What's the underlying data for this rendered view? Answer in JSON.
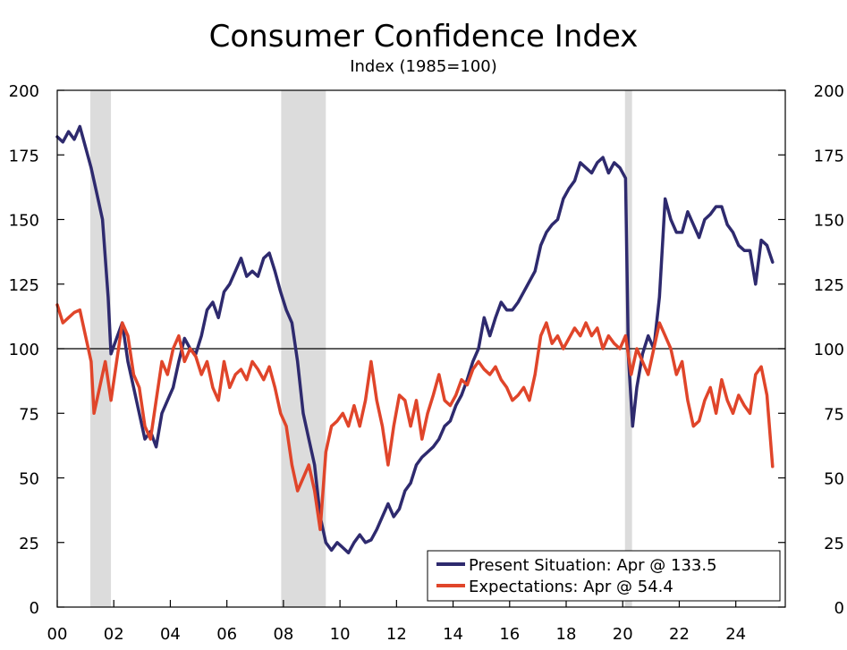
{
  "chart_data": {
    "type": "line",
    "title": "Consumer Confidence Index",
    "subtitle": "Index (1985=100)",
    "xlabel": "",
    "ylabel": "",
    "xlim": [
      2000,
      2025.75
    ],
    "ylim": [
      0,
      200
    ],
    "yticks": [
      0,
      25,
      50,
      75,
      100,
      125,
      150,
      175,
      200
    ],
    "xticks": [
      {
        "value": 2000,
        "label": "00"
      },
      {
        "value": 2002,
        "label": "02"
      },
      {
        "value": 2004,
        "label": "04"
      },
      {
        "value": 2006,
        "label": "06"
      },
      {
        "value": 2008,
        "label": "08"
      },
      {
        "value": 2010,
        "label": "10"
      },
      {
        "value": 2012,
        "label": "12"
      },
      {
        "value": 2014,
        "label": "14"
      },
      {
        "value": 2016,
        "label": "16"
      },
      {
        "value": 2018,
        "label": "18"
      },
      {
        "value": 2020,
        "label": "20"
      },
      {
        "value": 2022,
        "label": "22"
      },
      {
        "value": 2024,
        "label": "24"
      }
    ],
    "reference_line": 100,
    "recessions": [
      [
        2001.17,
        2001.9
      ],
      [
        2007.92,
        2009.5
      ],
      [
        2020.08,
        2020.33
      ]
    ],
    "legend_position": "bottom-right",
    "series": [
      {
        "name": "Present Situation",
        "legend_label": "Present Situation: Apr @ 133.5",
        "color": "#2e2a6e",
        "points": [
          [
            2000.0,
            182
          ],
          [
            2000.2,
            180
          ],
          [
            2000.4,
            184
          ],
          [
            2000.6,
            181
          ],
          [
            2000.8,
            186
          ],
          [
            2001.0,
            178
          ],
          [
            2001.2,
            170
          ],
          [
            2001.4,
            160
          ],
          [
            2001.6,
            150
          ],
          [
            2001.8,
            120
          ],
          [
            2001.9,
            98
          ],
          [
            2002.1,
            104
          ],
          [
            2002.3,
            110
          ],
          [
            2002.5,
            95
          ],
          [
            2002.7,
            85
          ],
          [
            2002.9,
            75
          ],
          [
            2003.1,
            65
          ],
          [
            2003.3,
            68
          ],
          [
            2003.5,
            62
          ],
          [
            2003.7,
            75
          ],
          [
            2003.9,
            80
          ],
          [
            2004.1,
            85
          ],
          [
            2004.3,
            95
          ],
          [
            2004.5,
            104
          ],
          [
            2004.7,
            100
          ],
          [
            2004.9,
            98
          ],
          [
            2005.1,
            105
          ],
          [
            2005.3,
            115
          ],
          [
            2005.5,
            118
          ],
          [
            2005.7,
            112
          ],
          [
            2005.9,
            122
          ],
          [
            2006.1,
            125
          ],
          [
            2006.3,
            130
          ],
          [
            2006.5,
            135
          ],
          [
            2006.7,
            128
          ],
          [
            2006.9,
            130
          ],
          [
            2007.1,
            128
          ],
          [
            2007.3,
            135
          ],
          [
            2007.5,
            137
          ],
          [
            2007.7,
            130
          ],
          [
            2007.9,
            122
          ],
          [
            2008.1,
            115
          ],
          [
            2008.3,
            110
          ],
          [
            2008.5,
            95
          ],
          [
            2008.7,
            75
          ],
          [
            2008.9,
            65
          ],
          [
            2009.1,
            55
          ],
          [
            2009.3,
            35
          ],
          [
            2009.5,
            25
          ],
          [
            2009.7,
            22
          ],
          [
            2009.9,
            25
          ],
          [
            2010.1,
            23
          ],
          [
            2010.3,
            21
          ],
          [
            2010.5,
            25
          ],
          [
            2010.7,
            28
          ],
          [
            2010.9,
            25
          ],
          [
            2011.1,
            26
          ],
          [
            2011.3,
            30
          ],
          [
            2011.5,
            35
          ],
          [
            2011.7,
            40
          ],
          [
            2011.9,
            35
          ],
          [
            2012.1,
            38
          ],
          [
            2012.3,
            45
          ],
          [
            2012.5,
            48
          ],
          [
            2012.7,
            55
          ],
          [
            2012.9,
            58
          ],
          [
            2013.1,
            60
          ],
          [
            2013.3,
            62
          ],
          [
            2013.5,
            65
          ],
          [
            2013.7,
            70
          ],
          [
            2013.9,
            72
          ],
          [
            2014.1,
            78
          ],
          [
            2014.3,
            82
          ],
          [
            2014.5,
            88
          ],
          [
            2014.7,
            95
          ],
          [
            2014.9,
            100
          ],
          [
            2015.1,
            112
          ],
          [
            2015.3,
            105
          ],
          [
            2015.5,
            112
          ],
          [
            2015.7,
            118
          ],
          [
            2015.9,
            115
          ],
          [
            2016.1,
            115
          ],
          [
            2016.3,
            118
          ],
          [
            2016.5,
            122
          ],
          [
            2016.7,
            126
          ],
          [
            2016.9,
            130
          ],
          [
            2017.1,
            140
          ],
          [
            2017.3,
            145
          ],
          [
            2017.5,
            148
          ],
          [
            2017.7,
            150
          ],
          [
            2017.9,
            158
          ],
          [
            2018.1,
            162
          ],
          [
            2018.3,
            165
          ],
          [
            2018.5,
            172
          ],
          [
            2018.7,
            170
          ],
          [
            2018.9,
            168
          ],
          [
            2019.1,
            172
          ],
          [
            2019.3,
            174
          ],
          [
            2019.5,
            168
          ],
          [
            2019.7,
            172
          ],
          [
            2019.9,
            170
          ],
          [
            2020.1,
            166
          ],
          [
            2020.2,
            97
          ],
          [
            2020.35,
            70
          ],
          [
            2020.5,
            85
          ],
          [
            2020.7,
            98
          ],
          [
            2020.9,
            105
          ],
          [
            2021.1,
            100
          ],
          [
            2021.3,
            120
          ],
          [
            2021.5,
            158
          ],
          [
            2021.7,
            150
          ],
          [
            2021.9,
            145
          ],
          [
            2022.1,
            145
          ],
          [
            2022.3,
            153
          ],
          [
            2022.5,
            148
          ],
          [
            2022.7,
            143
          ],
          [
            2022.9,
            150
          ],
          [
            2023.1,
            152
          ],
          [
            2023.3,
            155
          ],
          [
            2023.5,
            155
          ],
          [
            2023.7,
            148
          ],
          [
            2023.9,
            145
          ],
          [
            2024.1,
            140
          ],
          [
            2024.3,
            138
          ],
          [
            2024.5,
            138
          ],
          [
            2024.7,
            125
          ],
          [
            2024.9,
            142
          ],
          [
            2025.1,
            140
          ],
          [
            2025.3,
            133.5
          ]
        ]
      },
      {
        "name": "Expectations",
        "legend_label": "Expectations: Apr @ 54.4",
        "color": "#e0452a",
        "points": [
          [
            2000.0,
            117
          ],
          [
            2000.2,
            110
          ],
          [
            2000.4,
            112
          ],
          [
            2000.6,
            114
          ],
          [
            2000.8,
            115
          ],
          [
            2001.0,
            105
          ],
          [
            2001.2,
            95
          ],
          [
            2001.3,
            75
          ],
          [
            2001.5,
            85
          ],
          [
            2001.7,
            95
          ],
          [
            2001.9,
            80
          ],
          [
            2002.1,
            95
          ],
          [
            2002.3,
            110
          ],
          [
            2002.5,
            105
          ],
          [
            2002.7,
            90
          ],
          [
            2002.9,
            85
          ],
          [
            2003.1,
            70
          ],
          [
            2003.3,
            65
          ],
          [
            2003.5,
            80
          ],
          [
            2003.7,
            95
          ],
          [
            2003.9,
            90
          ],
          [
            2004.1,
            100
          ],
          [
            2004.3,
            105
          ],
          [
            2004.5,
            95
          ],
          [
            2004.7,
            100
          ],
          [
            2004.9,
            97
          ],
          [
            2005.1,
            90
          ],
          [
            2005.3,
            95
          ],
          [
            2005.5,
            85
          ],
          [
            2005.7,
            80
          ],
          [
            2005.9,
            95
          ],
          [
            2006.1,
            85
          ],
          [
            2006.3,
            90
          ],
          [
            2006.5,
            92
          ],
          [
            2006.7,
            88
          ],
          [
            2006.9,
            95
          ],
          [
            2007.1,
            92
          ],
          [
            2007.3,
            88
          ],
          [
            2007.5,
            93
          ],
          [
            2007.7,
            85
          ],
          [
            2007.9,
            75
          ],
          [
            2008.1,
            70
          ],
          [
            2008.3,
            55
          ],
          [
            2008.5,
            45
          ],
          [
            2008.7,
            50
          ],
          [
            2008.9,
            55
          ],
          [
            2009.1,
            45
          ],
          [
            2009.3,
            30
          ],
          [
            2009.5,
            60
          ],
          [
            2009.7,
            70
          ],
          [
            2009.9,
            72
          ],
          [
            2010.1,
            75
          ],
          [
            2010.3,
            70
          ],
          [
            2010.5,
            78
          ],
          [
            2010.7,
            70
          ],
          [
            2010.9,
            80
          ],
          [
            2011.1,
            95
          ],
          [
            2011.3,
            80
          ],
          [
            2011.5,
            70
          ],
          [
            2011.7,
            55
          ],
          [
            2011.9,
            70
          ],
          [
            2012.1,
            82
          ],
          [
            2012.3,
            80
          ],
          [
            2012.5,
            70
          ],
          [
            2012.7,
            80
          ],
          [
            2012.9,
            65
          ],
          [
            2013.1,
            75
          ],
          [
            2013.3,
            82
          ],
          [
            2013.5,
            90
          ],
          [
            2013.7,
            80
          ],
          [
            2013.9,
            78
          ],
          [
            2014.1,
            82
          ],
          [
            2014.3,
            88
          ],
          [
            2014.5,
            86
          ],
          [
            2014.7,
            92
          ],
          [
            2014.9,
            95
          ],
          [
            2015.1,
            92
          ],
          [
            2015.3,
            90
          ],
          [
            2015.5,
            93
          ],
          [
            2015.7,
            88
          ],
          [
            2015.9,
            85
          ],
          [
            2016.1,
            80
          ],
          [
            2016.3,
            82
          ],
          [
            2016.5,
            85
          ],
          [
            2016.7,
            80
          ],
          [
            2016.9,
            90
          ],
          [
            2017.1,
            105
          ],
          [
            2017.3,
            110
          ],
          [
            2017.5,
            102
          ],
          [
            2017.7,
            105
          ],
          [
            2017.9,
            100
          ],
          [
            2018.1,
            104
          ],
          [
            2018.3,
            108
          ],
          [
            2018.5,
            105
          ],
          [
            2018.7,
            110
          ],
          [
            2018.9,
            105
          ],
          [
            2019.1,
            108
          ],
          [
            2019.3,
            100
          ],
          [
            2019.5,
            105
          ],
          [
            2019.7,
            102
          ],
          [
            2019.9,
            100
          ],
          [
            2020.1,
            105
          ],
          [
            2020.3,
            90
          ],
          [
            2020.5,
            100
          ],
          [
            2020.7,
            95
          ],
          [
            2020.9,
            90
          ],
          [
            2021.1,
            100
          ],
          [
            2021.3,
            110
          ],
          [
            2021.5,
            105
          ],
          [
            2021.7,
            100
          ],
          [
            2021.9,
            90
          ],
          [
            2022.1,
            95
          ],
          [
            2022.3,
            80
          ],
          [
            2022.5,
            70
          ],
          [
            2022.7,
            72
          ],
          [
            2022.9,
            80
          ],
          [
            2023.1,
            85
          ],
          [
            2023.3,
            75
          ],
          [
            2023.5,
            88
          ],
          [
            2023.7,
            80
          ],
          [
            2023.9,
            75
          ],
          [
            2024.1,
            82
          ],
          [
            2024.3,
            78
          ],
          [
            2024.5,
            75
          ],
          [
            2024.7,
            90
          ],
          [
            2024.9,
            93
          ],
          [
            2025.1,
            82
          ],
          [
            2025.3,
            54.4
          ]
        ]
      }
    ]
  }
}
